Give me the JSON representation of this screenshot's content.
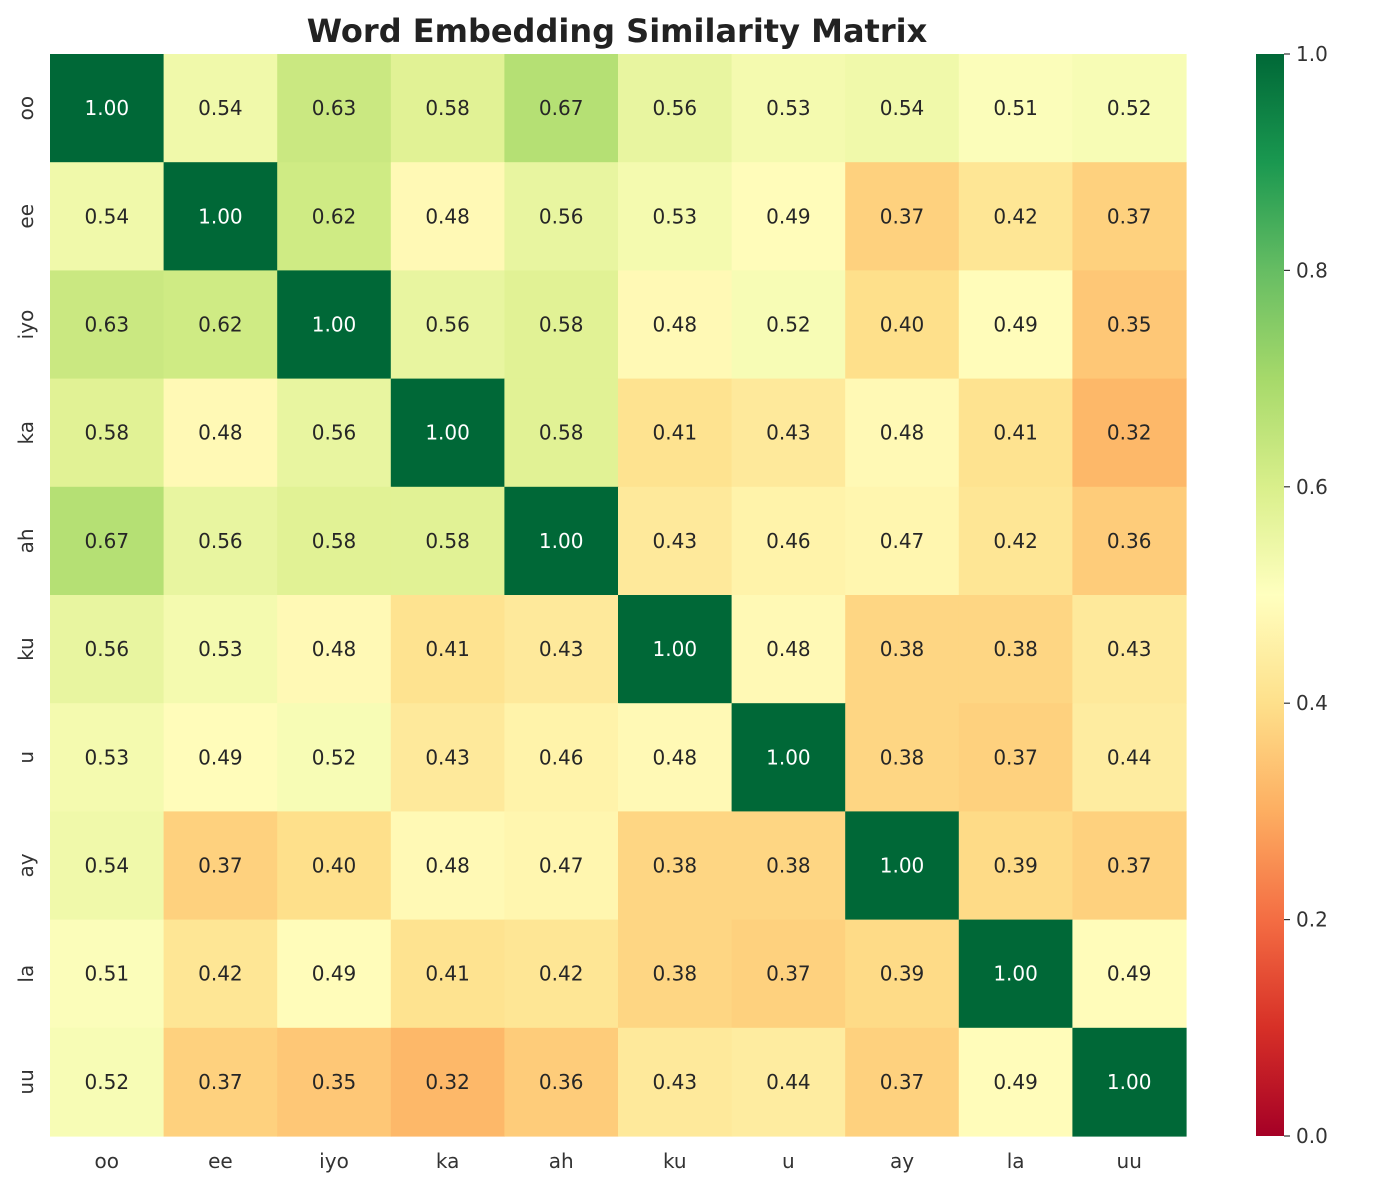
{
  "chart_data": {
    "type": "heatmap",
    "title": "Word Embedding Similarity Matrix",
    "xlabel": "",
    "ylabel": "",
    "x_categories": [
      "oo",
      "ee",
      "iyo",
      "ka",
      "ah",
      "ku",
      "u",
      "ay",
      "la",
      "uu"
    ],
    "y_categories": [
      "oo",
      "ee",
      "iyo",
      "ka",
      "ah",
      "ku",
      "u",
      "ay",
      "la",
      "uu"
    ],
    "values": [
      [
        1.0,
        0.54,
        0.63,
        0.58,
        0.67,
        0.56,
        0.53,
        0.54,
        0.51,
        0.52
      ],
      [
        0.54,
        1.0,
        0.62,
        0.48,
        0.56,
        0.53,
        0.49,
        0.37,
        0.42,
        0.37
      ],
      [
        0.63,
        0.62,
        1.0,
        0.56,
        0.58,
        0.48,
        0.52,
        0.4,
        0.49,
        0.35
      ],
      [
        0.58,
        0.48,
        0.56,
        1.0,
        0.58,
        0.41,
        0.43,
        0.48,
        0.41,
        0.32
      ],
      [
        0.67,
        0.56,
        0.58,
        0.58,
        1.0,
        0.43,
        0.46,
        0.47,
        0.42,
        0.36
      ],
      [
        0.56,
        0.53,
        0.48,
        0.41,
        0.43,
        1.0,
        0.48,
        0.38,
        0.38,
        0.43
      ],
      [
        0.53,
        0.49,
        0.52,
        0.43,
        0.46,
        0.48,
        1.0,
        0.38,
        0.37,
        0.44
      ],
      [
        0.54,
        0.37,
        0.4,
        0.48,
        0.47,
        0.38,
        0.38,
        1.0,
        0.39,
        0.37
      ],
      [
        0.51,
        0.42,
        0.49,
        0.41,
        0.42,
        0.38,
        0.37,
        0.39,
        1.0,
        0.49
      ],
      [
        0.52,
        0.37,
        0.35,
        0.32,
        0.36,
        0.43,
        0.44,
        0.37,
        0.49,
        1.0
      ]
    ],
    "value_format": "2 decimals",
    "colormap": "RdYlGn",
    "colorbar": {
      "range": [
        0.0,
        1.0
      ],
      "ticks": [
        "0.0",
        "0.2",
        "0.4",
        "0.6",
        "0.8",
        "1.0"
      ]
    },
    "colormap_stops": [
      "#a50026",
      "#d73027",
      "#f46d43",
      "#fdae61",
      "#fee08b",
      "#ffffbf",
      "#d9ef8b",
      "#a6d96a",
      "#66bd63",
      "#1a9850",
      "#006837"
    ],
    "annotation_text_colors": {
      "light": "#ffffff",
      "dark": "#262626"
    },
    "grid": false,
    "legend": "colorbar-right"
  }
}
